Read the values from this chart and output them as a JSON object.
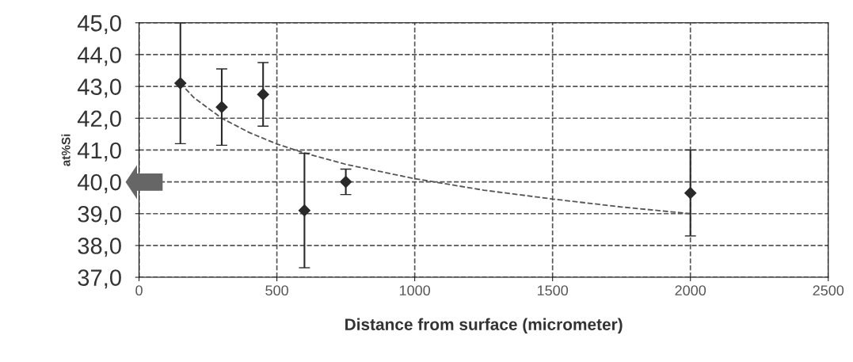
{
  "chart_data": {
    "type": "scatter",
    "xlabel": "Distance from surface (micrometer)",
    "ylabel": "at%Si",
    "series": [
      {
        "color": "#2a2a2a",
        "marker": "diamond",
        "x": [
          150,
          300,
          450,
          600,
          750,
          2000
        ],
        "values": [
          43.1,
          42.35,
          42.75,
          39.1,
          40.0,
          39.65
        ],
        "errors": [
          1.9,
          1.2,
          1.0,
          1.8,
          0.4,
          1.35
        ]
      },
      {
        "type": "line",
        "color": "#555555",
        "line_style": "dashed",
        "marker": "none",
        "x": [
          150,
          200,
          300,
          400,
          500,
          600,
          750,
          1000,
          1250,
          1500,
          1750,
          2000
        ],
        "values": [
          43.1,
          42.64,
          42.0,
          41.55,
          41.19,
          40.91,
          40.55,
          40.1,
          39.74,
          39.46,
          39.21,
          39.0
        ]
      }
    ],
    "xlim": [
      0,
      2500
    ],
    "xticks": [
      0,
      500,
      1000,
      1500,
      2000,
      2500
    ],
    "ylim": [
      37,
      45
    ],
    "yticks": [
      {
        "value": 37,
        "label": "37,0"
      },
      {
        "value": 38,
        "label": "38,0"
      },
      {
        "value": 39,
        "label": "39,0"
      },
      {
        "value": 40,
        "label": "40,0"
      },
      {
        "value": 41,
        "label": "41,0"
      },
      {
        "value": 42,
        "label": "42,0"
      },
      {
        "value": 43,
        "label": "43,0"
      },
      {
        "value": 44,
        "label": "44,0"
      },
      {
        "value": 45,
        "label": "45,0"
      }
    ],
    "grid": true
  }
}
